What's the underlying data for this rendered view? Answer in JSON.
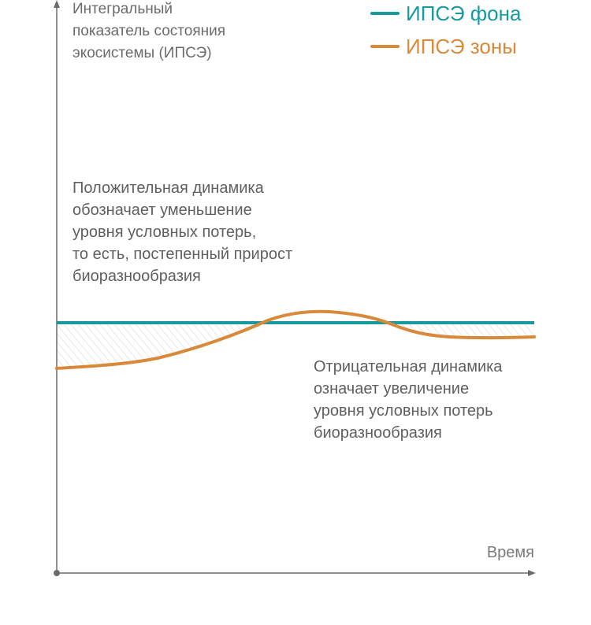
{
  "y_axis_label": "Интегральный\nпоказатель состояния\nэкосистемы (ИПСЭ)",
  "x_axis_label": "Время",
  "legend": [
    {
      "label": "ИПСЭ фона",
      "color": "#169aa0"
    },
    {
      "label": "ИПСЭ зоны",
      "color": "#d8893a"
    }
  ],
  "annotations": {
    "positive": "Положительная динамика\nобозначает уменьшение\nуровня условных потерь,\nто есть, постепенный прирост\nбиоразнообразия",
    "negative": "Отрицательная динамика\nозначает увеличение\nуровня условных потерь\nбиоразнообразия"
  },
  "colors": {
    "axis": "#6b6b6b",
    "background_line": "#169aa0",
    "zone_line": "#d8893a",
    "hatch": "#d0d0d0"
  }
}
